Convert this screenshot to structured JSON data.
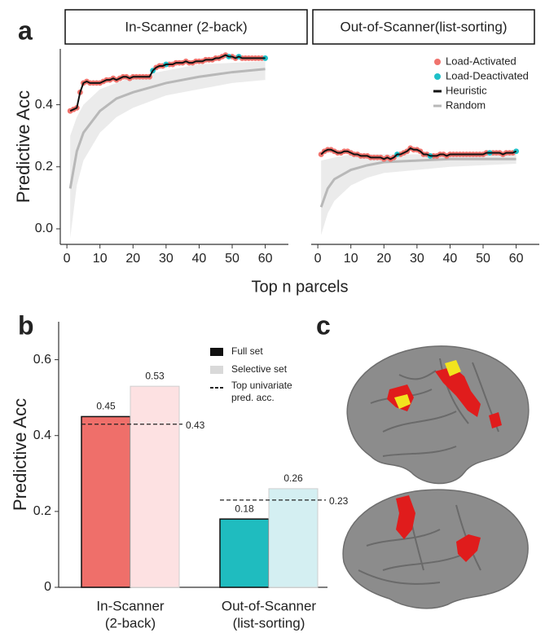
{
  "panel_labels": [
    "a",
    "b",
    "c"
  ],
  "chart_data": [
    {
      "type": "line",
      "title": "In-Scanner (2-back)",
      "ylabel": "Predictive Acc",
      "xlabel": "Top n parcels",
      "xlim": [
        -2,
        67
      ],
      "ylim": [
        -0.05,
        0.58
      ],
      "xticks": [
        0,
        10,
        20,
        30,
        40,
        50,
        60
      ],
      "yticks": [
        {
          "value": 0,
          "label": "0.0"
        },
        0.2,
        0.4
      ],
      "x": [
        1,
        2,
        3,
        4,
        5,
        6,
        7,
        8,
        9,
        10,
        11,
        12,
        13,
        14,
        15,
        16,
        17,
        18,
        19,
        20,
        21,
        22,
        23,
        24,
        25,
        26,
        27,
        28,
        29,
        30,
        31,
        32,
        33,
        34,
        35,
        36,
        37,
        38,
        39,
        40,
        41,
        42,
        43,
        44,
        45,
        46,
        47,
        48,
        49,
        50,
        51,
        52,
        53,
        54,
        55,
        56,
        57,
        58,
        59,
        60
      ],
      "series": [
        {
          "name": "Random",
          "color": "#b8b8b8",
          "style": "line",
          "band_color": "#ebebeb",
          "x": [
            1,
            3,
            5,
            10,
            15,
            20,
            30,
            40,
            50,
            60
          ],
          "values": [
            0.13,
            0.25,
            0.31,
            0.38,
            0.42,
            0.44,
            0.47,
            0.49,
            0.505,
            0.515
          ],
          "band_lower": [
            -0.03,
            0.14,
            0.22,
            0.31,
            0.36,
            0.39,
            0.43,
            0.45,
            0.47,
            0.48
          ],
          "band_upper": [
            0.3,
            0.36,
            0.4,
            0.45,
            0.47,
            0.49,
            0.51,
            0.53,
            0.535,
            0.54
          ]
        },
        {
          "name": "Load-Activated",
          "color": "#f0736d",
          "style": "markers",
          "values": [
            0.38,
            0.385,
            0.39,
            0.44,
            0.47,
            0.475,
            0.47,
            0.47,
            0.47,
            0.47,
            0.475,
            0.48,
            0.48,
            0.485,
            0.48,
            0.485,
            0.49,
            0.49,
            0.485,
            0.49,
            0.49,
            0.49,
            0.49,
            0.49,
            0.49,
            null,
            0.52,
            0.525,
            0.525,
            null,
            0.53,
            0.53,
            0.535,
            0.535,
            0.535,
            0.54,
            0.535,
            0.535,
            0.54,
            0.54,
            0.54,
            0.545,
            0.545,
            0.545,
            0.55,
            0.55,
            0.555,
            0.56,
            null,
            0.555,
            0.55,
            null,
            0.55,
            0.55,
            0.55,
            0.55,
            0.55,
            0.55,
            0.55,
            null
          ]
        },
        {
          "name": "Load-Deactivated",
          "color": "#1ec0c8",
          "style": "markers",
          "values": [
            null,
            null,
            null,
            null,
            null,
            null,
            null,
            null,
            null,
            null,
            null,
            null,
            null,
            null,
            null,
            null,
            null,
            null,
            null,
            null,
            null,
            null,
            null,
            null,
            null,
            0.51,
            null,
            null,
            null,
            0.53,
            null,
            null,
            null,
            null,
            null,
            null,
            null,
            null,
            null,
            null,
            null,
            null,
            null,
            null,
            null,
            null,
            null,
            null,
            0.555,
            null,
            null,
            0.555,
            null,
            null,
            null,
            null,
            null,
            null,
            null,
            0.55
          ]
        },
        {
          "name": "Heuristic",
          "color": "#111111",
          "style": "line",
          "values": [
            0.38,
            0.385,
            0.39,
            0.44,
            0.47,
            0.475,
            0.47,
            0.47,
            0.47,
            0.47,
            0.475,
            0.48,
            0.48,
            0.485,
            0.48,
            0.485,
            0.49,
            0.49,
            0.485,
            0.49,
            0.49,
            0.49,
            0.49,
            0.49,
            0.49,
            0.51,
            0.52,
            0.525,
            0.525,
            0.53,
            0.53,
            0.53,
            0.535,
            0.535,
            0.535,
            0.54,
            0.535,
            0.535,
            0.54,
            0.54,
            0.54,
            0.545,
            0.545,
            0.545,
            0.55,
            0.55,
            0.555,
            0.56,
            0.555,
            0.555,
            0.55,
            0.555,
            0.55,
            0.55,
            0.55,
            0.55,
            0.55,
            0.55,
            0.55,
            0.55
          ]
        }
      ]
    },
    {
      "type": "line",
      "title": "Out-of-Scanner(list-sorting)",
      "legend": "upper right",
      "xlim": [
        -2,
        67
      ],
      "ylim": [
        -0.05,
        0.58
      ],
      "xticks": [
        0,
        10,
        20,
        30,
        40,
        50,
        60
      ],
      "x": [
        1,
        2,
        3,
        4,
        5,
        6,
        7,
        8,
        9,
        10,
        11,
        12,
        13,
        14,
        15,
        16,
        17,
        18,
        19,
        20,
        21,
        22,
        23,
        24,
        25,
        26,
        27,
        28,
        29,
        30,
        31,
        32,
        33,
        34,
        35,
        36,
        37,
        38,
        39,
        40,
        41,
        42,
        43,
        44,
        45,
        46,
        47,
        48,
        49,
        50,
        51,
        52,
        53,
        54,
        55,
        56,
        57,
        58,
        59,
        60
      ],
      "series": [
        {
          "name": "Random",
          "color": "#b8b8b8",
          "style": "line",
          "band_color": "#ebebeb",
          "x": [
            1,
            3,
            5,
            10,
            15,
            20,
            30,
            40,
            50,
            60
          ],
          "values": [
            0.07,
            0.13,
            0.16,
            0.19,
            0.205,
            0.215,
            0.22,
            0.225,
            0.225,
            0.225
          ],
          "band_lower": [
            -0.02,
            0.05,
            0.09,
            0.14,
            0.165,
            0.18,
            0.19,
            0.2,
            0.205,
            0.21
          ],
          "band_upper": [
            0.22,
            0.225,
            0.23,
            0.24,
            0.24,
            0.24,
            0.24,
            0.24,
            0.24,
            0.24
          ]
        },
        {
          "name": "Load-Activated",
          "color": "#f0736d",
          "style": "markers",
          "values": [
            0.24,
            0.25,
            0.255,
            0.255,
            0.25,
            0.245,
            0.245,
            0.25,
            0.25,
            0.245,
            0.24,
            0.24,
            0.235,
            0.235,
            0.235,
            0.23,
            0.23,
            0.23,
            0.23,
            0.225,
            0.23,
            0.225,
            0.23,
            null,
            0.24,
            0.245,
            0.25,
            0.26,
            0.255,
            0.255,
            0.25,
            0.24,
            0.24,
            null,
            0.235,
            0.235,
            0.24,
            0.24,
            0.235,
            0.24,
            0.24,
            0.24,
            0.24,
            0.24,
            0.24,
            0.24,
            0.24,
            0.24,
            0.24,
            0.24,
            0.245,
            null,
            0.245,
            0.245,
            0.245,
            0.24,
            0.245,
            0.245,
            0.245,
            null
          ]
        },
        {
          "name": "Load-Deactivated",
          "color": "#1ec0c8",
          "style": "markers",
          "values": [
            null,
            null,
            null,
            null,
            null,
            null,
            null,
            null,
            null,
            null,
            null,
            null,
            null,
            null,
            null,
            null,
            null,
            null,
            null,
            null,
            null,
            null,
            null,
            0.24,
            null,
            null,
            null,
            null,
            null,
            null,
            null,
            null,
            null,
            0.235,
            null,
            null,
            null,
            null,
            null,
            null,
            null,
            null,
            null,
            null,
            null,
            null,
            null,
            null,
            null,
            null,
            null,
            0.245,
            null,
            null,
            null,
            null,
            null,
            null,
            null,
            0.25
          ]
        },
        {
          "name": "Heuristic",
          "color": "#111111",
          "style": "line",
          "values": [
            0.24,
            0.25,
            0.255,
            0.255,
            0.25,
            0.245,
            0.245,
            0.25,
            0.25,
            0.245,
            0.24,
            0.24,
            0.235,
            0.235,
            0.235,
            0.23,
            0.23,
            0.23,
            0.23,
            0.225,
            0.23,
            0.225,
            0.23,
            0.24,
            0.24,
            0.245,
            0.25,
            0.26,
            0.255,
            0.255,
            0.25,
            0.24,
            0.24,
            0.235,
            0.235,
            0.235,
            0.24,
            0.24,
            0.235,
            0.24,
            0.24,
            0.24,
            0.24,
            0.24,
            0.24,
            0.24,
            0.24,
            0.24,
            0.24,
            0.24,
            0.245,
            0.245,
            0.245,
            0.245,
            0.245,
            0.24,
            0.245,
            0.245,
            0.245,
            0.25
          ]
        }
      ]
    },
    {
      "type": "bar",
      "ylabel": "Predictive Acc",
      "categories": [
        [
          "In-Scanner",
          "(2-back)"
        ],
        [
          "Out-of-Scanner",
          "(list-sorting)"
        ]
      ],
      "ylim": [
        0,
        0.7
      ],
      "yticks": [
        0,
        0.2,
        0.4,
        0.6
      ],
      "series": [
        {
          "name": "Full set",
          "legend_color": "#111111",
          "edgecolor": "#111111",
          "colors": [
            "#ef6f6a",
            "#1fbcbf"
          ],
          "values": [
            0.45,
            0.18
          ]
        },
        {
          "name": "Selective set",
          "legend_color": "#d9d9d9",
          "edgecolor": "#cfcfcf",
          "colors": [
            "#fde1e2",
            "#d4eff2"
          ],
          "values": [
            0.53,
            0.26
          ]
        }
      ],
      "reference": {
        "name": [
          "Top univariate",
          "pred. acc."
        ],
        "values": [
          0.43,
          0.23
        ]
      }
    }
  ]
}
